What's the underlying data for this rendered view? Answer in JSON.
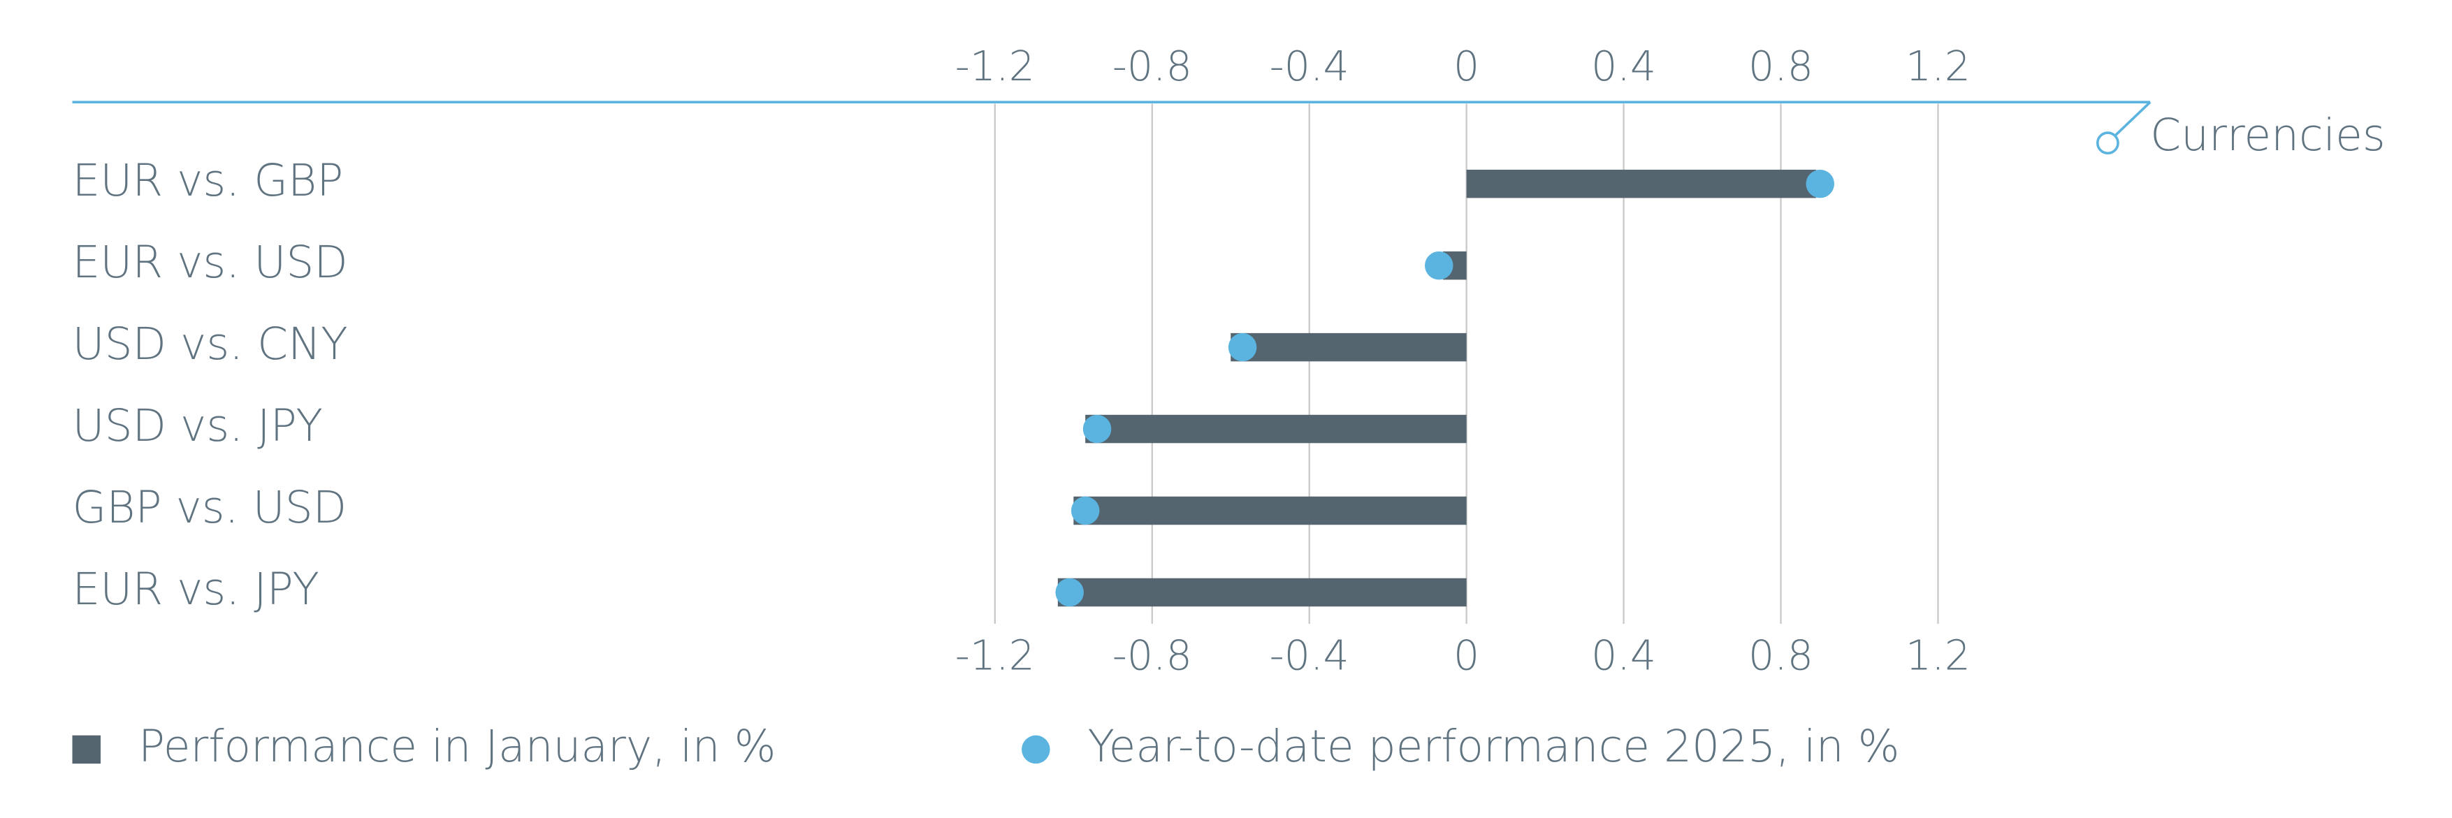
{
  "chart_data": {
    "type": "bar",
    "orientation": "horizontal",
    "panel_label": "Currencies",
    "categories": [
      "EUR vs. GBP",
      "EUR vs. USD",
      "USD vs. CNY",
      "USD vs. JPY",
      "GBP vs. USD",
      "EUR vs. JPY"
    ],
    "series": [
      {
        "name": "Performance in January, in %",
        "color": "#546570",
        "mark": "bar",
        "values": [
          0.89,
          -0.06,
          -0.6,
          -0.97,
          -1.0,
          -1.04
        ]
      },
      {
        "name": "Year-to-date performance 2025, in %",
        "color": "#5bb4e0",
        "mark": "dot",
        "values": [
          0.9,
          -0.07,
          -0.57,
          -0.94,
          -0.97,
          -1.01
        ]
      }
    ],
    "xlim": [
      -1.2,
      1.2
    ],
    "xticks": [
      -1.2,
      -0.8,
      -0.4,
      0,
      0.4,
      0.8,
      1.2
    ],
    "grid": true
  }
}
